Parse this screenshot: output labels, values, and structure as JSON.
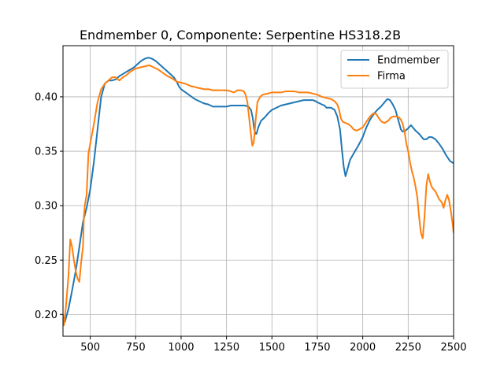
{
  "chart_data": {
    "type": "line",
    "title": "Endmember 0, Componente: Serpentine HS318.2B",
    "xlabel": "",
    "ylabel": "",
    "xlim": [
      350,
      2500
    ],
    "ylim": [
      0.18,
      0.447
    ],
    "x_ticks": [
      500,
      750,
      1000,
      1250,
      1500,
      1750,
      2000,
      2250,
      2500
    ],
    "y_ticks": [
      0.2,
      0.25,
      0.3,
      0.35,
      0.4
    ],
    "x_tick_labels": [
      "500",
      "750",
      "1000",
      "1250",
      "1500",
      "1750",
      "2000",
      "2250",
      "2500"
    ],
    "y_tick_labels": [
      "0.20",
      "0.25",
      "0.30",
      "0.35",
      "0.40"
    ],
    "grid": true,
    "legend_position": "top-right",
    "series": [
      {
        "name": "Endmember",
        "color": "#1f77b4",
        "points": [
          [
            350,
            0.192
          ],
          [
            360,
            0.193
          ],
          [
            380,
            0.205
          ],
          [
            400,
            0.222
          ],
          [
            420,
            0.24
          ],
          [
            440,
            0.262
          ],
          [
            460,
            0.285
          ],
          [
            480,
            0.298
          ],
          [
            500,
            0.315
          ],
          [
            520,
            0.34
          ],
          [
            540,
            0.37
          ],
          [
            560,
            0.4
          ],
          [
            580,
            0.412
          ],
          [
            600,
            0.415
          ],
          [
            620,
            0.415
          ],
          [
            640,
            0.416
          ],
          [
            660,
            0.419
          ],
          [
            680,
            0.421
          ],
          [
            700,
            0.423
          ],
          [
            720,
            0.425
          ],
          [
            740,
            0.427
          ],
          [
            760,
            0.43
          ],
          [
            780,
            0.433
          ],
          [
            800,
            0.435
          ],
          [
            820,
            0.436
          ],
          [
            840,
            0.435
          ],
          [
            860,
            0.433
          ],
          [
            880,
            0.43
          ],
          [
            900,
            0.427
          ],
          [
            920,
            0.424
          ],
          [
            940,
            0.421
          ],
          [
            960,
            0.418
          ],
          [
            975,
            0.414
          ],
          [
            990,
            0.409
          ],
          [
            1000,
            0.407
          ],
          [
            1025,
            0.404
          ],
          [
            1050,
            0.401
          ],
          [
            1075,
            0.398
          ],
          [
            1100,
            0.396
          ],
          [
            1125,
            0.394
          ],
          [
            1150,
            0.393
          ],
          [
            1175,
            0.391
          ],
          [
            1200,
            0.391
          ],
          [
            1225,
            0.391
          ],
          [
            1250,
            0.391
          ],
          [
            1275,
            0.392
          ],
          [
            1300,
            0.392
          ],
          [
            1325,
            0.392
          ],
          [
            1350,
            0.392
          ],
          [
            1370,
            0.391
          ],
          [
            1385,
            0.388
          ],
          [
            1395,
            0.38
          ],
          [
            1403,
            0.37
          ],
          [
            1410,
            0.366
          ],
          [
            1415,
            0.366
          ],
          [
            1425,
            0.372
          ],
          [
            1440,
            0.378
          ],
          [
            1460,
            0.381
          ],
          [
            1480,
            0.385
          ],
          [
            1500,
            0.388
          ],
          [
            1525,
            0.39
          ],
          [
            1550,
            0.392
          ],
          [
            1575,
            0.393
          ],
          [
            1600,
            0.394
          ],
          [
            1625,
            0.395
          ],
          [
            1650,
            0.396
          ],
          [
            1675,
            0.397
          ],
          [
            1700,
            0.397
          ],
          [
            1725,
            0.397
          ],
          [
            1740,
            0.396
          ],
          [
            1750,
            0.395
          ],
          [
            1775,
            0.393
          ],
          [
            1790,
            0.392
          ],
          [
            1800,
            0.39
          ],
          [
            1825,
            0.39
          ],
          [
            1845,
            0.388
          ],
          [
            1860,
            0.382
          ],
          [
            1875,
            0.37
          ],
          [
            1885,
            0.352
          ],
          [
            1895,
            0.336
          ],
          [
            1905,
            0.327
          ],
          [
            1915,
            0.333
          ],
          [
            1930,
            0.342
          ],
          [
            1950,
            0.348
          ],
          [
            1975,
            0.355
          ],
          [
            2000,
            0.363
          ],
          [
            2020,
            0.372
          ],
          [
            2040,
            0.379
          ],
          [
            2060,
            0.384
          ],
          [
            2080,
            0.388
          ],
          [
            2100,
            0.391
          ],
          [
            2120,
            0.395
          ],
          [
            2135,
            0.398
          ],
          [
            2150,
            0.397
          ],
          [
            2165,
            0.393
          ],
          [
            2180,
            0.388
          ],
          [
            2190,
            0.382
          ],
          [
            2200,
            0.376
          ],
          [
            2210,
            0.37
          ],
          [
            2220,
            0.368
          ],
          [
            2235,
            0.369
          ],
          [
            2250,
            0.371
          ],
          [
            2265,
            0.374
          ],
          [
            2275,
            0.372
          ],
          [
            2290,
            0.369
          ],
          [
            2310,
            0.366
          ],
          [
            2320,
            0.364
          ],
          [
            2335,
            0.361
          ],
          [
            2350,
            0.361
          ],
          [
            2365,
            0.363
          ],
          [
            2380,
            0.363
          ],
          [
            2400,
            0.361
          ],
          [
            2420,
            0.357
          ],
          [
            2440,
            0.352
          ],
          [
            2460,
            0.346
          ],
          [
            2480,
            0.341
          ],
          [
            2500,
            0.339
          ]
        ]
      },
      {
        "name": "Firma",
        "color": "#ff7f0e",
        "points": [
          [
            350,
            0.2
          ],
          [
            355,
            0.19
          ],
          [
            365,
            0.205
          ],
          [
            380,
            0.235
          ],
          [
            390,
            0.269
          ],
          [
            400,
            0.262
          ],
          [
            410,
            0.25
          ],
          [
            420,
            0.24
          ],
          [
            430,
            0.233
          ],
          [
            440,
            0.23
          ],
          [
            450,
            0.248
          ],
          [
            460,
            0.262
          ],
          [
            465,
            0.29
          ],
          [
            470,
            0.3
          ],
          [
            480,
            0.31
          ],
          [
            490,
            0.348
          ],
          [
            500,
            0.357
          ],
          [
            520,
            0.375
          ],
          [
            540,
            0.395
          ],
          [
            560,
            0.407
          ],
          [
            580,
            0.412
          ],
          [
            600,
            0.415
          ],
          [
            620,
            0.418
          ],
          [
            640,
            0.418
          ],
          [
            660,
            0.415
          ],
          [
            680,
            0.418
          ],
          [
            700,
            0.42
          ],
          [
            720,
            0.423
          ],
          [
            750,
            0.426
          ],
          [
            775,
            0.427
          ],
          [
            800,
            0.428
          ],
          [
            825,
            0.429
          ],
          [
            850,
            0.427
          ],
          [
            875,
            0.425
          ],
          [
            900,
            0.422
          ],
          [
            925,
            0.419
          ],
          [
            950,
            0.417
          ],
          [
            975,
            0.414
          ],
          [
            1000,
            0.413
          ],
          [
            1025,
            0.412
          ],
          [
            1050,
            0.41
          ],
          [
            1075,
            0.409
          ],
          [
            1100,
            0.408
          ],
          [
            1125,
            0.407
          ],
          [
            1150,
            0.407
          ],
          [
            1175,
            0.406
          ],
          [
            1200,
            0.406
          ],
          [
            1225,
            0.406
          ],
          [
            1250,
            0.406
          ],
          [
            1275,
            0.405
          ],
          [
            1290,
            0.404
          ],
          [
            1310,
            0.406
          ],
          [
            1330,
            0.406
          ],
          [
            1345,
            0.405
          ],
          [
            1355,
            0.402
          ],
          [
            1365,
            0.395
          ],
          [
            1375,
            0.38
          ],
          [
            1385,
            0.365
          ],
          [
            1392,
            0.355
          ],
          [
            1400,
            0.358
          ],
          [
            1410,
            0.378
          ],
          [
            1420,
            0.395
          ],
          [
            1435,
            0.4
          ],
          [
            1450,
            0.402
          ],
          [
            1475,
            0.403
          ],
          [
            1500,
            0.404
          ],
          [
            1525,
            0.404
          ],
          [
            1550,
            0.404
          ],
          [
            1575,
            0.405
          ],
          [
            1600,
            0.405
          ],
          [
            1625,
            0.405
          ],
          [
            1650,
            0.404
          ],
          [
            1675,
            0.404
          ],
          [
            1700,
            0.404
          ],
          [
            1725,
            0.403
          ],
          [
            1750,
            0.402
          ],
          [
            1775,
            0.4
          ],
          [
            1800,
            0.399
          ],
          [
            1825,
            0.398
          ],
          [
            1845,
            0.396
          ],
          [
            1860,
            0.393
          ],
          [
            1870,
            0.388
          ],
          [
            1880,
            0.38
          ],
          [
            1890,
            0.377
          ],
          [
            1905,
            0.376
          ],
          [
            1920,
            0.375
          ],
          [
            1935,
            0.373
          ],
          [
            1950,
            0.37
          ],
          [
            1965,
            0.369
          ],
          [
            1980,
            0.37
          ],
          [
            2000,
            0.372
          ],
          [
            2020,
            0.377
          ],
          [
            2040,
            0.382
          ],
          [
            2060,
            0.385
          ],
          [
            2075,
            0.384
          ],
          [
            2090,
            0.38
          ],
          [
            2105,
            0.377
          ],
          [
            2120,
            0.376
          ],
          [
            2140,
            0.378
          ],
          [
            2155,
            0.381
          ],
          [
            2170,
            0.382
          ],
          [
            2185,
            0.382
          ],
          [
            2200,
            0.381
          ],
          [
            2210,
            0.379
          ],
          [
            2220,
            0.375
          ],
          [
            2230,
            0.368
          ],
          [
            2240,
            0.357
          ],
          [
            2250,
            0.35
          ],
          [
            2260,
            0.34
          ],
          [
            2270,
            0.332
          ],
          [
            2280,
            0.326
          ],
          [
            2290,
            0.318
          ],
          [
            2300,
            0.308
          ],
          [
            2310,
            0.29
          ],
          [
            2320,
            0.275
          ],
          [
            2330,
            0.27
          ],
          [
            2340,
            0.29
          ],
          [
            2350,
            0.318
          ],
          [
            2360,
            0.329
          ],
          [
            2370,
            0.322
          ],
          [
            2380,
            0.317
          ],
          [
            2400,
            0.313
          ],
          [
            2420,
            0.306
          ],
          [
            2435,
            0.303
          ],
          [
            2445,
            0.298
          ],
          [
            2455,
            0.305
          ],
          [
            2465,
            0.31
          ],
          [
            2475,
            0.305
          ],
          [
            2485,
            0.295
          ],
          [
            2495,
            0.283
          ],
          [
            2500,
            0.275
          ]
        ]
      }
    ]
  }
}
